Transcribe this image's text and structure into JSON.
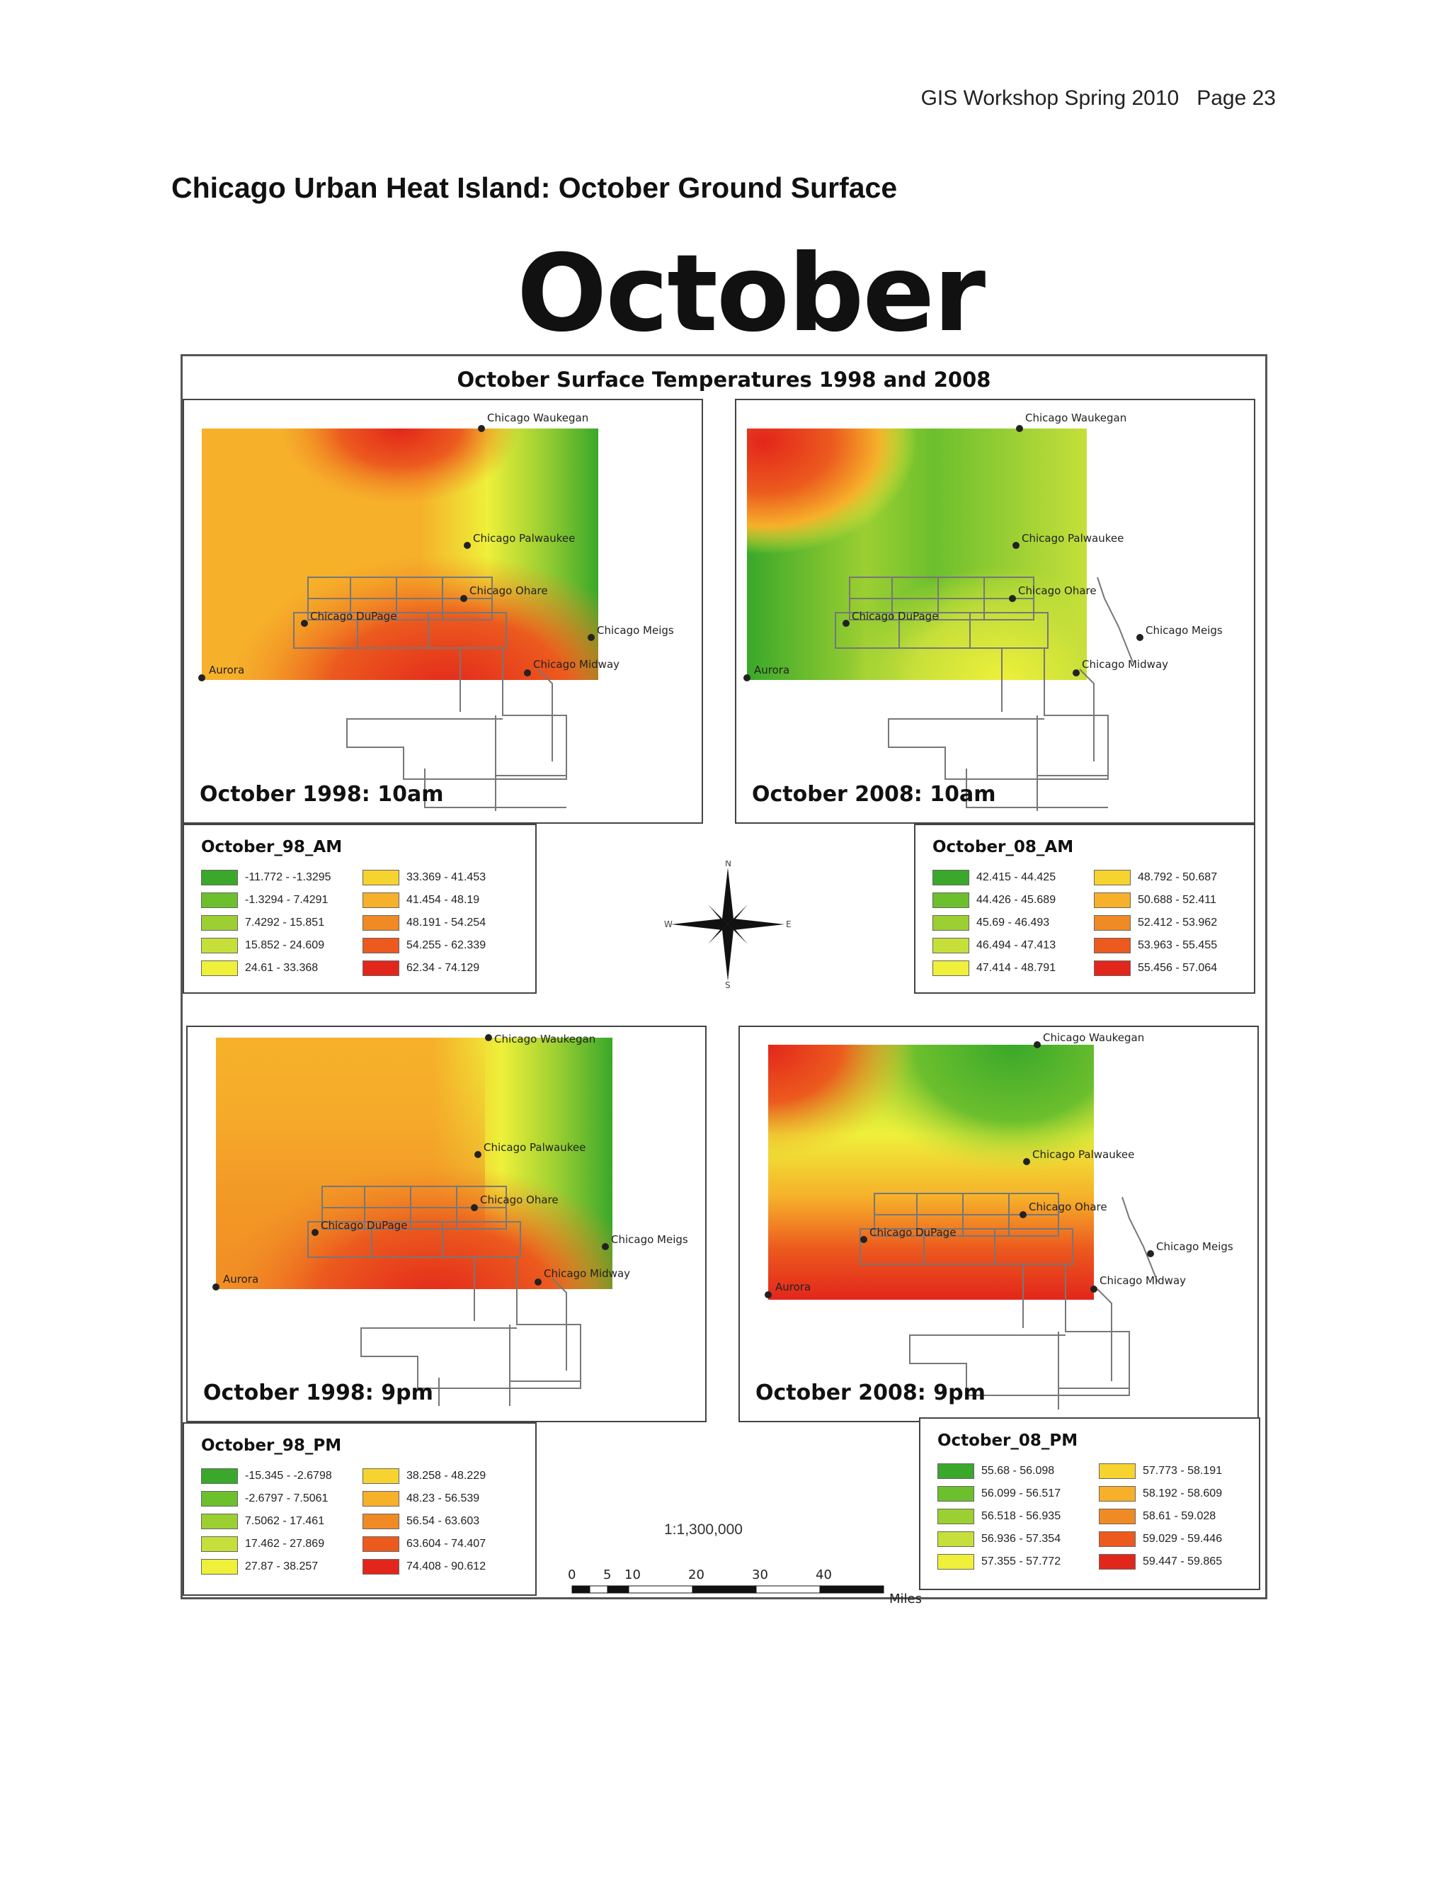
{
  "page": {
    "header": "GIS Workshop Spring 2010   Page 23",
    "heading": "Chicago Urban Heat Island: October Ground Surface",
    "big_title": "October"
  },
  "figure": {
    "title": "October Surface Temperatures 1998 and 2008",
    "scale_ratio": "1:1,300,000",
    "scale_ticks": [
      "0",
      "5",
      "10",
      "20",
      "30",
      "40"
    ],
    "scale_unit": "Miles",
    "compass": {
      "n": "N",
      "s": "S",
      "e": "E",
      "w": "W"
    },
    "colors": [
      "#3aa82a",
      "#6cbf2d",
      "#9ccf32",
      "#c6df3a",
      "#eef03a",
      "#f6d32e",
      "#f6b02a",
      "#f08a24",
      "#ec5a1e",
      "#e3261b"
    ],
    "stations": {
      "waukegan": "Chicago Waukegan",
      "palwaukee": "Chicago Palwaukee",
      "ohare": "Chicago Ohare",
      "dupage": "Chicago DuPage",
      "meigs": "Chicago Meigs",
      "midway": "Chicago Midway",
      "aurora": "Aurora"
    },
    "panels": [
      {
        "id": "oct98am",
        "label": "October 1998: 10am"
      },
      {
        "id": "oct08am",
        "label": "October 2008: 10am"
      },
      {
        "id": "oct98pm",
        "label": "October 1998: 9pm"
      },
      {
        "id": "oct08pm",
        "label": "October 2008: 9pm"
      }
    ],
    "legends": [
      {
        "title": "October_98_AM",
        "items": [
          "-11.772 - -1.3295",
          "-1.3294 - 7.4291",
          "7.4292 - 15.851",
          "15.852 - 24.609",
          "24.61 - 33.368",
          "33.369 - 41.453",
          "41.454 - 48.19",
          "48.191 - 54.254",
          "54.255 - 62.339",
          "62.34 - 74.129"
        ]
      },
      {
        "title": "October_08_AM",
        "items": [
          "42.415 - 44.425",
          "44.426 - 45.689",
          "45.69 - 46.493",
          "46.494 - 47.413",
          "47.414 - 48.791",
          "48.792 - 50.687",
          "50.688 - 52.411",
          "52.412 - 53.962",
          "53.963 - 55.455",
          "55.456 - 57.064"
        ]
      },
      {
        "title": "October_98_PM",
        "items": [
          "-15.345 - -2.6798",
          "-2.6797 - 7.5061",
          "7.5062 - 17.461",
          "17.462 - 27.869",
          "27.87 - 38.257",
          "38.258 - 48.229",
          "48.23 - 56.539",
          "56.54 - 63.603",
          "63.604 - 74.407",
          "74.408 - 90.612"
        ]
      },
      {
        "title": "October_08_PM",
        "items": [
          "55.68 - 56.098",
          "56.099 - 56.517",
          "56.518 - 56.935",
          "56.936 - 57.354",
          "57.355 - 57.772",
          "57.773 - 58.191",
          "58.192 - 58.609",
          "58.61 - 59.028",
          "59.029 - 59.446",
          "59.447 - 59.865"
        ]
      }
    ]
  }
}
